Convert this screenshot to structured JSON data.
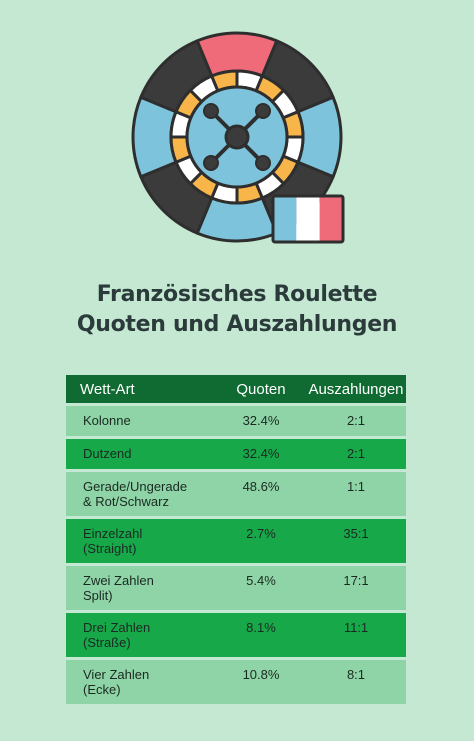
{
  "title": {
    "line1": "Französisches Roulette",
    "line2": "Quoten und Auszahlungen"
  },
  "illustration": {
    "icon": "roulette-wheel-icon",
    "flag_icon": "french-flag-icon",
    "colors": {
      "black": "#3b3b3b",
      "red": "#f06b7a",
      "blue": "#7ec3dc",
      "orange": "#f7b54a",
      "outline": "#2e2e2e",
      "flag_blue": "#7ec3dc",
      "flag_white": "#ffffff",
      "flag_red": "#f06b7a"
    }
  },
  "table": {
    "headers": [
      "Wett-Art",
      "Quoten",
      "Auszahlungen"
    ],
    "rows": [
      {
        "bet": [
          "Kolonne"
        ],
        "odds": "32.4%",
        "payout": "2:1"
      },
      {
        "bet": [
          "Dutzend"
        ],
        "odds": "32.4%",
        "payout": "2:1"
      },
      {
        "bet": [
          "Gerade/Ungerade",
          "& Rot/Schwarz"
        ],
        "odds": "48.6%",
        "payout": "1:1"
      },
      {
        "bet": [
          "Einzelzahl",
          "(Straight)"
        ],
        "odds": "2.7%",
        "payout": "35:1"
      },
      {
        "bet": [
          "Zwei Zahlen",
          "Split)"
        ],
        "odds": "5.4%",
        "payout": "17:1"
      },
      {
        "bet": [
          "Drei Zahlen",
          "(Straße)"
        ],
        "odds": "8.1%",
        "payout": "11:1"
      },
      {
        "bet": [
          "Vier Zahlen",
          "(Ecke)"
        ],
        "odds": "10.8%",
        "payout": "8:1"
      }
    ]
  },
  "colors": {
    "background": "#c4e8d2",
    "header": "#0f6b32",
    "row_light": "#8fd4a6",
    "row_dark": "#17a84a"
  }
}
